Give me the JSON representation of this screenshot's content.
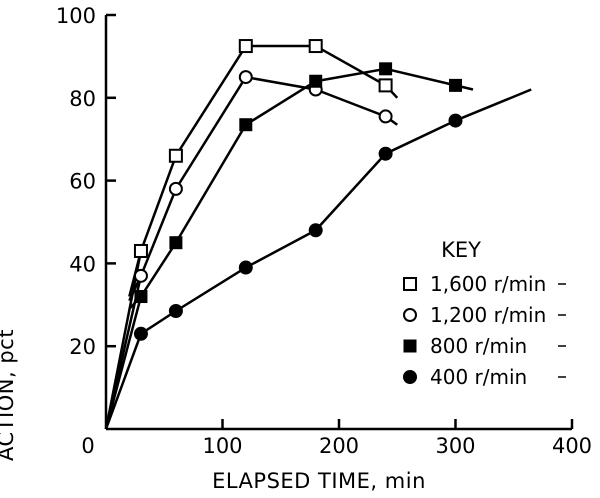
{
  "chart_data": {
    "type": "line",
    "title": "",
    "xlabel": "ELAPSED TIME, min",
    "ylabel": "ACTION, pct",
    "xlim": [
      0,
      400
    ],
    "ylim": [
      0,
      100
    ],
    "x_ticks": [
      {
        "value": 0,
        "label": "0"
      },
      {
        "value": 100,
        "label": "100"
      },
      {
        "value": 200,
        "label": "200"
      },
      {
        "value": 300,
        "label": "300"
      },
      {
        "value": 400,
        "label": "400"
      }
    ],
    "y_ticks": [
      {
        "value": 20,
        "label": "20"
      },
      {
        "value": 40,
        "label": "40"
      },
      {
        "value": 60,
        "label": "60"
      },
      {
        "value": 80,
        "label": "80"
      },
      {
        "value": 100,
        "label": "100"
      }
    ],
    "grid": false,
    "legend": {
      "title": "KEY",
      "placement": "right"
    },
    "series": [
      {
        "name": "1,600 r/min",
        "marker": "open-square",
        "points": [
          [
            0,
            0
          ],
          [
            30,
            43
          ],
          [
            60,
            66
          ],
          [
            120,
            92.5
          ],
          [
            180,
            92.5
          ],
          [
            240,
            83
          ]
        ],
        "line_extension": [
          [
            20,
            32
          ],
          [
            250,
            80
          ]
        ]
      },
      {
        "name": "1,200 r/min",
        "marker": "open-circle",
        "points": [
          [
            0,
            0
          ],
          [
            30,
            37
          ],
          [
            60,
            58
          ],
          [
            120,
            85
          ],
          [
            180,
            82
          ],
          [
            240,
            75.5
          ]
        ],
        "line_extension": [
          [
            20,
            31
          ],
          [
            250,
            73.5
          ]
        ]
      },
      {
        "name": "800 r/min",
        "marker": "filled-square",
        "points": [
          [
            0,
            0
          ],
          [
            30,
            32
          ],
          [
            60,
            45
          ],
          [
            120,
            73.5
          ],
          [
            180,
            84
          ],
          [
            240,
            87
          ],
          [
            300,
            83
          ]
        ],
        "line_extension": [
          [
            20,
            29
          ],
          [
            315,
            82
          ]
        ]
      },
      {
        "name": "400 r/min",
        "marker": "filled-circle",
        "points": [
          [
            0,
            0
          ],
          [
            30,
            23
          ],
          [
            60,
            28.5
          ],
          [
            120,
            39
          ],
          [
            180,
            48
          ],
          [
            240,
            66.5
          ],
          [
            300,
            74.5
          ]
        ],
        "line_extension": [
          [
            365,
            82
          ]
        ]
      }
    ]
  }
}
